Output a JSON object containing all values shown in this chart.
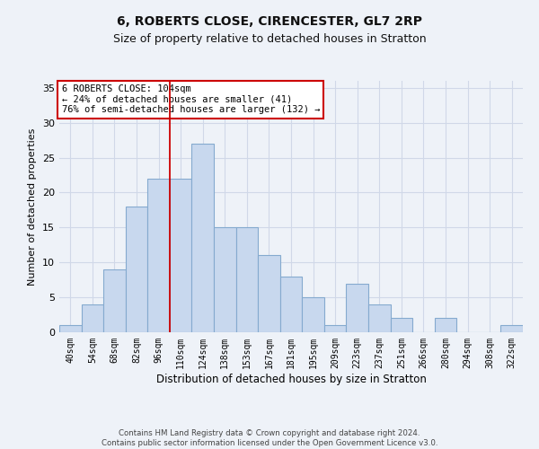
{
  "title_line1": "6, ROBERTS CLOSE, CIRENCESTER, GL7 2RP",
  "title_line2": "Size of property relative to detached houses in Stratton",
  "xlabel": "Distribution of detached houses by size in Stratton",
  "ylabel": "Number of detached properties",
  "footer_line1": "Contains HM Land Registry data © Crown copyright and database right 2024.",
  "footer_line2": "Contains public sector information licensed under the Open Government Licence v3.0.",
  "annotation_line1": "6 ROBERTS CLOSE: 104sqm",
  "annotation_line2": "← 24% of detached houses are smaller (41)",
  "annotation_line3": "76% of semi-detached houses are larger (132) →",
  "bar_labels": [
    "40sqm",
    "54sqm",
    "68sqm",
    "82sqm",
    "96sqm",
    "110sqm",
    "124sqm",
    "138sqm",
    "153sqm",
    "167sqm",
    "181sqm",
    "195sqm",
    "209sqm",
    "223sqm",
    "237sqm",
    "251sqm",
    "266sqm",
    "280sqm",
    "294sqm",
    "308sqm",
    "322sqm"
  ],
  "bar_values": [
    1,
    4,
    9,
    18,
    22,
    22,
    27,
    15,
    15,
    11,
    8,
    5,
    1,
    7,
    4,
    2,
    0,
    2,
    0,
    0,
    1
  ],
  "bar_color": "#c8d8ee",
  "bar_edge_color": "#85aacf",
  "grid_color": "#d0d8e8",
  "vline_x": 4.5,
  "vline_color": "#cc0000",
  "ylim": [
    0,
    36
  ],
  "yticks": [
    0,
    5,
    10,
    15,
    20,
    25,
    30,
    35
  ],
  "background_color": "#eef2f8",
  "annotation_box_color": "#ffffff",
  "annotation_box_edge": "#cc0000",
  "title1_fontsize": 10,
  "title2_fontsize": 9
}
